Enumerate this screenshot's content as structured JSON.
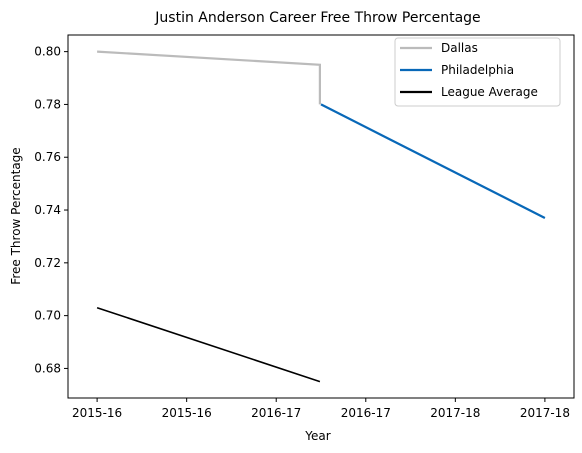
{
  "chart_data": {
    "type": "line",
    "title": "Justin Anderson  Career Free Throw Percentage",
    "xlabel": "Year",
    "ylabel": "Free Throw Percentage",
    "xlim": [
      -0.13,
      2.13
    ],
    "ylim": [
      0.6688,
      0.8063
    ],
    "x_tick_values": [
      0,
      0.4,
      0.8,
      1.2,
      1.6,
      2.0
    ],
    "x_tick_labels": [
      "2015-16",
      "2015-16",
      "2016-17",
      "2016-17",
      "2017-18",
      "2017-18"
    ],
    "y_ticks": [
      0.68,
      0.7,
      0.72,
      0.74,
      0.76,
      0.78,
      0.8
    ],
    "y_tick_labels": [
      "0.68",
      "0.70",
      "0.72",
      "0.74",
      "0.76",
      "0.78",
      "0.80"
    ],
    "grid": false,
    "legend_position": "top-right",
    "series": [
      {
        "name": "Dallas",
        "color": "#bbbbbb",
        "points": [
          [
            0,
            0.8
          ],
          [
            0.995,
            0.795
          ],
          [
            0.995,
            0.78
          ]
        ]
      },
      {
        "name": "Philadelphia",
        "color": "#0868b8",
        "points": [
          [
            1.0,
            0.78
          ],
          [
            2.0,
            0.737
          ]
        ]
      },
      {
        "name": "League Average",
        "color": "#000000",
        "points": [
          [
            0,
            0.703
          ],
          [
            0.995,
            0.675
          ]
        ]
      }
    ]
  }
}
